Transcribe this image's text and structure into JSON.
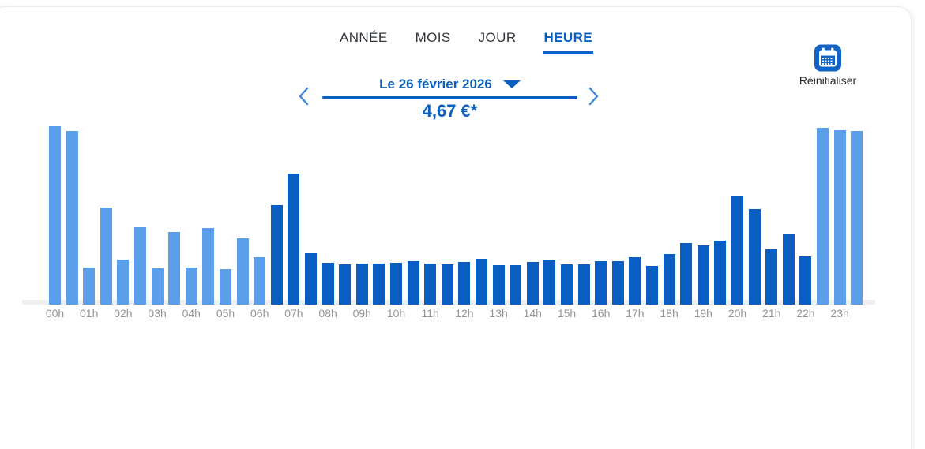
{
  "header": {
    "tabs": [
      {
        "label": "ANNÉE",
        "active": false
      },
      {
        "label": "MOIS",
        "active": false
      },
      {
        "label": "JOUR",
        "active": false
      },
      {
        "label": "HEURE",
        "active": true
      }
    ]
  },
  "date_nav": {
    "date_label": "Le 26 février 2026",
    "total_price": "4,67 €*"
  },
  "reset": {
    "label": "Réinitialiser",
    "icon": "calendar-icon"
  },
  "colors": {
    "brand_blue": "#0b5fc0",
    "bar_offpeak": "#5b9ee9",
    "bar_peak": "#0a5ec2",
    "tick_gray": "#939598"
  },
  "chart_data": {
    "type": "bar",
    "title": "Consommation par heure - Le 26 février 2026",
    "total_label": "4,67 €*",
    "xlabel": "",
    "ylabel": "",
    "bars_per_hour": 2,
    "value_unit": "relative bar height in px (no y-axis shown in UI)",
    "legend": {
      "offpeak": "light blue bars (heures creuses)",
      "peak": "dark blue bars (heures pleines)"
    },
    "palette": {
      "offpeak": "#5b9ee9",
      "peak": "#0a5ec2"
    },
    "hours": [
      {
        "label": "00h",
        "bars": [
          {
            "value": 226,
            "period": "offpeak"
          },
          {
            "value": 220,
            "period": "offpeak"
          }
        ]
      },
      {
        "label": "01h",
        "bars": [
          {
            "value": 47,
            "period": "offpeak"
          },
          {
            "value": 123,
            "period": "offpeak"
          }
        ]
      },
      {
        "label": "02h",
        "bars": [
          {
            "value": 57,
            "period": "offpeak"
          },
          {
            "value": 98,
            "period": "offpeak"
          }
        ]
      },
      {
        "label": "03h",
        "bars": [
          {
            "value": 46,
            "period": "offpeak"
          },
          {
            "value": 92,
            "period": "offpeak"
          }
        ]
      },
      {
        "label": "04h",
        "bars": [
          {
            "value": 47,
            "period": "offpeak"
          },
          {
            "value": 97,
            "period": "offpeak"
          }
        ]
      },
      {
        "label": "05h",
        "bars": [
          {
            "value": 45,
            "period": "offpeak"
          },
          {
            "value": 84,
            "period": "offpeak"
          }
        ]
      },
      {
        "label": "06h",
        "bars": [
          {
            "value": 60,
            "period": "offpeak"
          },
          {
            "value": 126,
            "period": "peak"
          }
        ]
      },
      {
        "label": "07h",
        "bars": [
          {
            "value": 166,
            "period": "peak"
          },
          {
            "value": 66,
            "period": "peak"
          }
        ]
      },
      {
        "label": "08h",
        "bars": [
          {
            "value": 53,
            "period": "peak"
          },
          {
            "value": 51,
            "period": "peak"
          }
        ]
      },
      {
        "label": "09h",
        "bars": [
          {
            "value": 52,
            "period": "peak"
          },
          {
            "value": 52,
            "period": "peak"
          }
        ]
      },
      {
        "label": "10h",
        "bars": [
          {
            "value": 53,
            "period": "peak"
          },
          {
            "value": 55,
            "period": "peak"
          }
        ]
      },
      {
        "label": "11h",
        "bars": [
          {
            "value": 52,
            "period": "peak"
          },
          {
            "value": 51,
            "period": "peak"
          }
        ]
      },
      {
        "label": "12h",
        "bars": [
          {
            "value": 54,
            "period": "peak"
          },
          {
            "value": 58,
            "period": "peak"
          }
        ]
      },
      {
        "label": "13h",
        "bars": [
          {
            "value": 50,
            "period": "peak"
          },
          {
            "value": 50,
            "period": "peak"
          }
        ]
      },
      {
        "label": "14h",
        "bars": [
          {
            "value": 54,
            "period": "peak"
          },
          {
            "value": 57,
            "period": "peak"
          }
        ]
      },
      {
        "label": "15h",
        "bars": [
          {
            "value": 51,
            "period": "peak"
          },
          {
            "value": 51,
            "period": "peak"
          }
        ]
      },
      {
        "label": "16h",
        "bars": [
          {
            "value": 55,
            "period": "peak"
          },
          {
            "value": 55,
            "period": "peak"
          }
        ]
      },
      {
        "label": "17h",
        "bars": [
          {
            "value": 60,
            "period": "peak"
          },
          {
            "value": 49,
            "period": "peak"
          }
        ]
      },
      {
        "label": "18h",
        "bars": [
          {
            "value": 64,
            "period": "peak"
          },
          {
            "value": 78,
            "period": "peak"
          }
        ]
      },
      {
        "label": "19h",
        "bars": [
          {
            "value": 75,
            "period": "peak"
          },
          {
            "value": 81,
            "period": "peak"
          }
        ]
      },
      {
        "label": "20h",
        "bars": [
          {
            "value": 138,
            "period": "peak"
          },
          {
            "value": 121,
            "period": "peak"
          }
        ]
      },
      {
        "label": "21h",
        "bars": [
          {
            "value": 70,
            "period": "peak"
          },
          {
            "value": 90,
            "period": "peak"
          }
        ]
      },
      {
        "label": "22h",
        "bars": [
          {
            "value": 61,
            "period": "peak"
          },
          {
            "value": 224,
            "period": "offpeak"
          }
        ]
      },
      {
        "label": "23h",
        "bars": [
          {
            "value": 221,
            "period": "offpeak"
          },
          {
            "value": 220,
            "period": "offpeak"
          }
        ]
      }
    ]
  }
}
